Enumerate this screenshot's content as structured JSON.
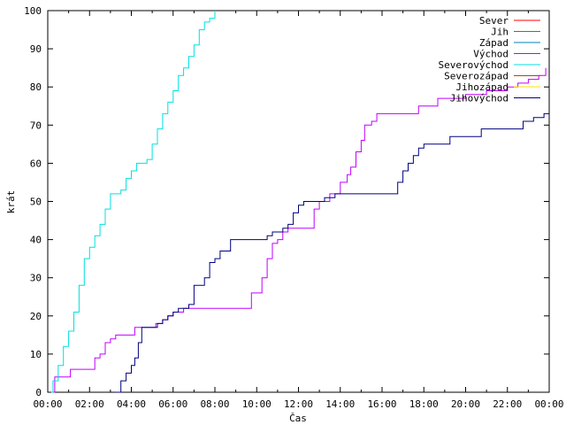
{
  "chart_data": {
    "type": "line",
    "title": "",
    "xlabel": "Čas",
    "ylabel": "krát",
    "xlim": [
      "00:00",
      "24:00"
    ],
    "ylim": [
      0,
      100
    ],
    "x_ticks": [
      "00:00",
      "02:00",
      "04:00",
      "06:00",
      "08:00",
      "10:00",
      "12:00",
      "14:00",
      "16:00",
      "18:00",
      "20:00",
      "22:00",
      "00:00"
    ],
    "y_ticks": [
      "0",
      "10",
      "20",
      "30",
      "40",
      "50",
      "60",
      "70",
      "80",
      "90",
      "100"
    ],
    "legend_position": "top-right",
    "grid": false,
    "series": [
      {
        "name": "Sever",
        "color": "#ff0000",
        "points": []
      },
      {
        "name": "Jih",
        "color": "#00b000",
        "points": []
      },
      {
        "name": "Západ",
        "color": "#0080c0",
        "points": []
      },
      {
        "name": "Východ",
        "color": "#c000ff",
        "points": [
          [
            "00:15",
            0
          ],
          [
            "00:20",
            4
          ],
          [
            "01:00",
            4
          ],
          [
            "01:05",
            6
          ],
          [
            "02:00",
            6
          ],
          [
            "02:15",
            9
          ],
          [
            "02:30",
            10
          ],
          [
            "02:45",
            13
          ],
          [
            "03:00",
            14
          ],
          [
            "03:15",
            15
          ],
          [
            "04:00",
            15
          ],
          [
            "04:10",
            17
          ],
          [
            "05:00",
            17
          ],
          [
            "05:10",
            18
          ],
          [
            "05:30",
            19
          ],
          [
            "05:45",
            20
          ],
          [
            "06:00",
            21
          ],
          [
            "06:30",
            22
          ],
          [
            "07:30",
            22
          ],
          [
            "09:30",
            22
          ],
          [
            "09:45",
            26
          ],
          [
            "10:15",
            30
          ],
          [
            "10:30",
            35
          ],
          [
            "10:45",
            39
          ],
          [
            "11:00",
            40
          ],
          [
            "11:15",
            42
          ],
          [
            "11:30",
            43
          ],
          [
            "12:30",
            43
          ],
          [
            "12:45",
            48
          ],
          [
            "13:00",
            50
          ],
          [
            "13:30",
            52
          ],
          [
            "14:00",
            55
          ],
          [
            "14:20",
            57
          ],
          [
            "14:30",
            59
          ],
          [
            "14:45",
            63
          ],
          [
            "15:00",
            66
          ],
          [
            "15:10",
            70
          ],
          [
            "15:30",
            71
          ],
          [
            "15:45",
            73
          ],
          [
            "17:30",
            73
          ],
          [
            "17:45",
            75
          ],
          [
            "18:30",
            75
          ],
          [
            "18:40",
            77
          ],
          [
            "19:30",
            77
          ],
          [
            "20:00",
            78
          ],
          [
            "21:00",
            79
          ],
          [
            "22:00",
            80
          ],
          [
            "22:30",
            81
          ],
          [
            "23:00",
            82
          ],
          [
            "23:30",
            83
          ],
          [
            "23:50",
            85
          ]
        ]
      },
      {
        "name": "Severovýchod",
        "color": "#00e0e0",
        "points": [
          [
            "00:10",
            0
          ],
          [
            "00:15",
            3
          ],
          [
            "00:30",
            7
          ],
          [
            "00:45",
            12
          ],
          [
            "01:00",
            16
          ],
          [
            "01:15",
            21
          ],
          [
            "01:30",
            28
          ],
          [
            "01:45",
            35
          ],
          [
            "02:00",
            38
          ],
          [
            "02:15",
            41
          ],
          [
            "02:30",
            44
          ],
          [
            "02:45",
            48
          ],
          [
            "03:00",
            52
          ],
          [
            "03:30",
            53
          ],
          [
            "03:45",
            56
          ],
          [
            "04:00",
            58
          ],
          [
            "04:15",
            60
          ],
          [
            "04:45",
            61
          ],
          [
            "05:00",
            65
          ],
          [
            "05:15",
            69
          ],
          [
            "05:30",
            73
          ],
          [
            "05:45",
            76
          ],
          [
            "06:00",
            79
          ],
          [
            "06:15",
            83
          ],
          [
            "06:30",
            85
          ],
          [
            "06:45",
            88
          ],
          [
            "07:00",
            91
          ],
          [
            "07:15",
            95
          ],
          [
            "07:30",
            97
          ],
          [
            "07:45",
            98
          ],
          [
            "08:00",
            100
          ]
        ]
      },
      {
        "name": "Severozápad",
        "color": "#a05000",
        "points": []
      },
      {
        "name": "Jihozápad",
        "color": "#ffe000",
        "points": []
      },
      {
        "name": "Jihovýchod",
        "color": "#000080",
        "points": [
          [
            "03:15",
            0
          ],
          [
            "03:30",
            3
          ],
          [
            "03:45",
            5
          ],
          [
            "04:00",
            7
          ],
          [
            "04:10",
            9
          ],
          [
            "04:20",
            13
          ],
          [
            "04:30",
            17
          ],
          [
            "05:00",
            17
          ],
          [
            "05:15",
            18
          ],
          [
            "05:30",
            19
          ],
          [
            "05:45",
            20
          ],
          [
            "06:00",
            21
          ],
          [
            "06:15",
            22
          ],
          [
            "06:45",
            23
          ],
          [
            "07:00",
            28
          ],
          [
            "07:30",
            30
          ],
          [
            "07:45",
            34
          ],
          [
            "08:00",
            35
          ],
          [
            "08:15",
            37
          ],
          [
            "08:45",
            40
          ],
          [
            "10:15",
            40
          ],
          [
            "10:30",
            41
          ],
          [
            "10:45",
            42
          ],
          [
            "11:15",
            43
          ],
          [
            "11:30",
            44
          ],
          [
            "11:45",
            47
          ],
          [
            "12:00",
            49
          ],
          [
            "12:15",
            50
          ],
          [
            "13:00",
            50
          ],
          [
            "13:15",
            51
          ],
          [
            "13:45",
            52
          ],
          [
            "16:30",
            52
          ],
          [
            "16:45",
            55
          ],
          [
            "17:00",
            58
          ],
          [
            "17:15",
            60
          ],
          [
            "17:30",
            62
          ],
          [
            "17:45",
            64
          ],
          [
            "18:00",
            65
          ],
          [
            "19:00",
            65
          ],
          [
            "19:15",
            67
          ],
          [
            "20:30",
            67
          ],
          [
            "20:45",
            69
          ],
          [
            "22:30",
            69
          ],
          [
            "22:45",
            71
          ],
          [
            "23:15",
            72
          ],
          [
            "23:45",
            73
          ],
          [
            "24:00",
            73
          ]
        ]
      }
    ]
  }
}
